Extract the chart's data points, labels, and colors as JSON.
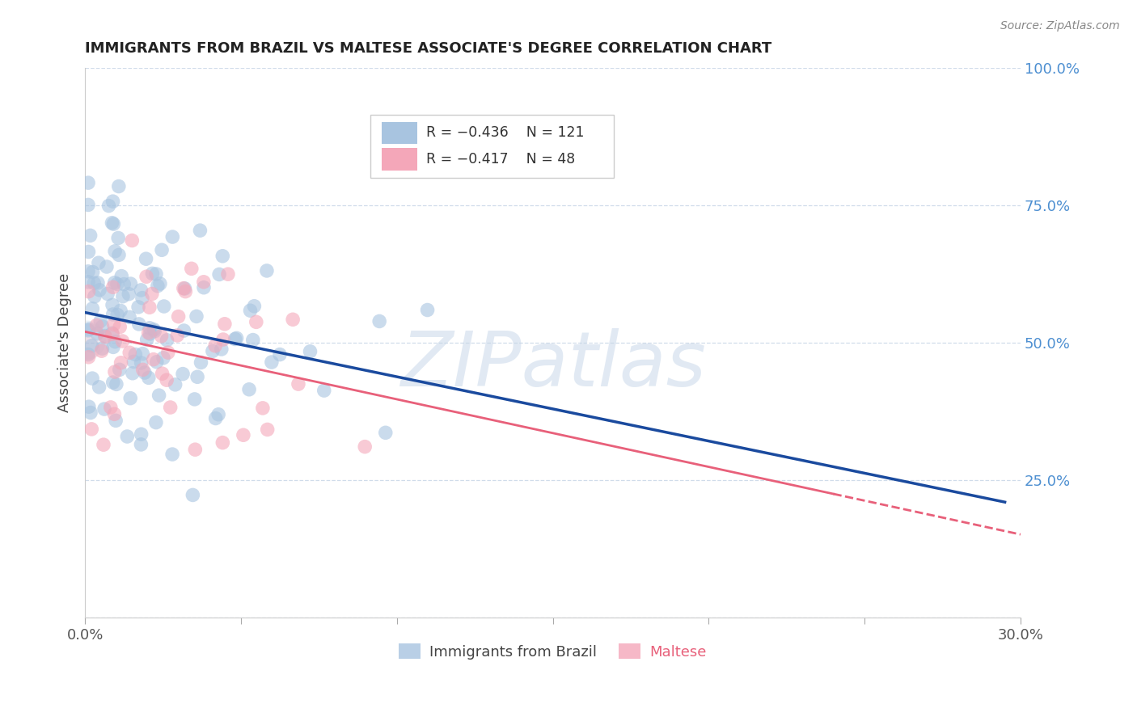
{
  "title": "IMMIGRANTS FROM BRAZIL VS MALTESE ASSOCIATE'S DEGREE CORRELATION CHART",
  "source": "Source: ZipAtlas.com",
  "xlabel_brazil": "Immigrants from Brazil",
  "xlabel_maltese": "Maltese",
  "ylabel": "Associate's Degree",
  "xlim": [
    0.0,
    0.3
  ],
  "ylim": [
    0.0,
    1.0
  ],
  "legend_blue_r": "R = −0.436",
  "legend_blue_n": "N = 121",
  "legend_pink_r": "R = −0.417",
  "legend_pink_n": "N = 48",
  "blue_color": "#a8c4e0",
  "pink_color": "#f4a7b9",
  "blue_line_color": "#1a4a9e",
  "pink_line_color": "#e8607a",
  "watermark": "ZIPatlas",
  "watermark_color": "#c5d5e8",
  "background_color": "#ffffff",
  "blue_intercept": 0.555,
  "blue_slope": -1.17,
  "pink_intercept": 0.52,
  "pink_slope": -1.23,
  "grid_color": "#d0dcea",
  "title_color": "#222222",
  "source_color": "#888888",
  "right_tick_color": "#4d8fd1",
  "ylabel_color": "#444444"
}
